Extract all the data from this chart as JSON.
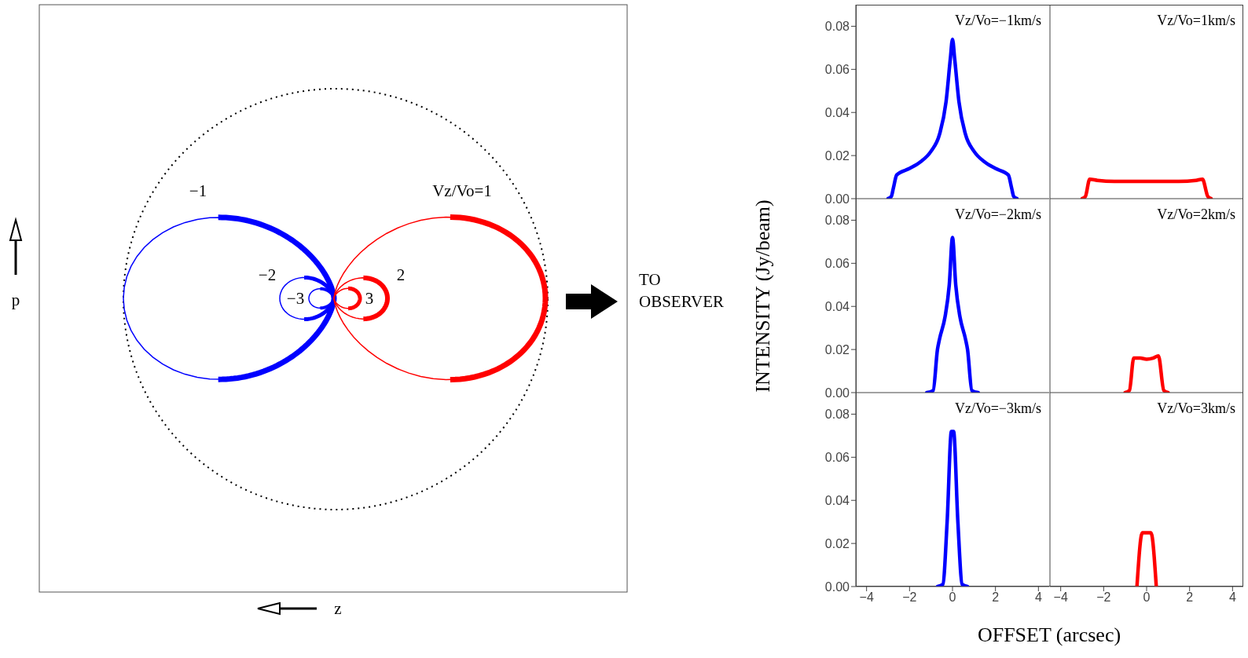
{
  "chart_data": [
    {
      "type": "other",
      "annotations": [
        "−1",
        "Vz/Vo=1",
        "−2",
        "2",
        "−3",
        "3",
        "TO OBSERVER",
        "p",
        "z"
      ]
    },
    {
      "type": "line",
      "annotations": [
        "Vz/Vo=−1km/s"
      ],
      "xlim": [
        -4.5,
        4.5
      ],
      "ylim": [
        0,
        0.09
      ],
      "xticks": [
        -4,
        -2,
        0,
        2,
        4
      ],
      "yticks": [
        {
          "value": 0,
          "label": "0.00"
        },
        {
          "value": 0.02,
          "label": "0.02"
        },
        {
          "value": 0.04,
          "label": "0.04"
        },
        {
          "value": 0.06,
          "label": "0.06"
        },
        {
          "value": 0.08,
          "label": "0.08"
        }
      ],
      "tick_labels": "y",
      "series": [
        {
          "color": "#0000ff",
          "x": [
            -3.0,
            -2.85,
            -2.75,
            -2.6,
            -2.0,
            -1.5,
            -1.0,
            -0.6,
            -0.3,
            -0.1,
            0,
            0.1,
            0.3,
            0.6,
            1.0,
            1.5,
            2.0,
            2.6,
            2.75,
            2.85,
            3.0
          ],
          "values": [
            0,
            0.001,
            0.005,
            0.011,
            0.014,
            0.017,
            0.022,
            0.03,
            0.045,
            0.065,
            0.074,
            0.065,
            0.045,
            0.03,
            0.022,
            0.017,
            0.014,
            0.011,
            0.005,
            0.001,
            0
          ]
        }
      ]
    },
    {
      "type": "line",
      "annotations": [
        "Vz/Vo=1km/s"
      ],
      "xlim": [
        -4.5,
        4.5
      ],
      "ylim": [
        0,
        0.09
      ],
      "xticks": [
        -4,
        -2,
        0,
        2,
        4
      ],
      "yticks": [
        {
          "value": 0,
          "label": null
        },
        {
          "value": 0.02,
          "label": null
        },
        {
          "value": 0.04,
          "label": null
        },
        {
          "value": 0.06,
          "label": null
        },
        {
          "value": 0.08,
          "label": null
        }
      ],
      "tick_labels": false,
      "series": [
        {
          "color": "#ff0000",
          "x": [
            -3.0,
            -2.85,
            -2.65,
            -2.3,
            -1.5,
            0,
            1.5,
            2.3,
            2.6,
            2.85,
            3.0
          ],
          "values": [
            0,
            0.001,
            0.009,
            0.0085,
            0.008,
            0.008,
            0.008,
            0.0085,
            0.009,
            0.001,
            0
          ]
        }
      ]
    },
    {
      "type": "line",
      "ylabel": "INTENSITY (Jy/beam)",
      "annotations": [
        "Vz/Vo=−2km/s"
      ],
      "xlim": [
        -4.5,
        4.5
      ],
      "ylim": [
        0,
        0.09
      ],
      "xticks": [
        -4,
        -2,
        0,
        2,
        4
      ],
      "yticks": [
        {
          "value": 0,
          "label": "0.00"
        },
        {
          "value": 0.02,
          "label": "0.02"
        },
        {
          "value": 0.04,
          "label": "0.04"
        },
        {
          "value": 0.06,
          "label": "0.06"
        },
        {
          "value": 0.08,
          "label": "0.08"
        }
      ],
      "tick_labels": "y",
      "series": [
        {
          "color": "#0000ff",
          "x": [
            -1.2,
            -0.9,
            -0.7,
            -0.6,
            -0.35,
            -0.15,
            0,
            0.15,
            0.35,
            0.6,
            0.7,
            0.9,
            1.2
          ],
          "values": [
            0,
            0.001,
            0.02,
            0.025,
            0.035,
            0.05,
            0.072,
            0.05,
            0.035,
            0.025,
            0.02,
            0.001,
            0
          ]
        }
      ]
    },
    {
      "type": "line",
      "annotations": [
        "Vz/Vo=2km/s"
      ],
      "xlim": [
        -4.5,
        4.5
      ],
      "ylim": [
        0,
        0.09
      ],
      "xticks": [
        -4,
        -2,
        0,
        2,
        4
      ],
      "yticks": [
        {
          "value": 0,
          "label": null
        },
        {
          "value": 0.02,
          "label": null
        },
        {
          "value": 0.04,
          "label": null
        },
        {
          "value": 0.06,
          "label": null
        },
        {
          "value": 0.08,
          "label": null
        }
      ],
      "tick_labels": false,
      "series": [
        {
          "color": "#ff0000",
          "x": [
            -1.0,
            -0.8,
            -0.6,
            -0.3,
            0,
            0.3,
            0.55,
            0.8,
            1.0
          ],
          "values": [
            0,
            0.001,
            0.016,
            0.016,
            0.0155,
            0.016,
            0.017,
            0.001,
            0
          ]
        }
      ]
    },
    {
      "type": "line",
      "xlabel": "OFFSET (arcsec)",
      "annotations": [
        "Vz/Vo=−3km/s"
      ],
      "xlim": [
        -4.5,
        4.5
      ],
      "ylim": [
        0,
        0.09
      ],
      "xticks": [
        -4,
        -2,
        0,
        2,
        4
      ],
      "yticks": [
        {
          "value": 0,
          "label": "0.00"
        },
        {
          "value": 0.02,
          "label": "0.02"
        },
        {
          "value": 0.04,
          "label": "0.04"
        },
        {
          "value": 0.06,
          "label": "0.06"
        },
        {
          "value": 0.08,
          "label": "0.08"
        }
      ],
      "series": [
        {
          "color": "#0000ff",
          "x": [
            -0.7,
            -0.45,
            -0.25,
            -0.05,
            0.05,
            0.25,
            0.45,
            0.7
          ],
          "values": [
            0,
            0.001,
            0.03,
            0.072,
            0.072,
            0.03,
            0.001,
            0
          ]
        }
      ]
    },
    {
      "type": "line",
      "annotations": [
        "Vz/Vo=3km/s"
      ],
      "xlim": [
        -4.5,
        4.5
      ],
      "ylim": [
        0,
        0.09
      ],
      "xticks": [
        -4,
        -2,
        0,
        2,
        4
      ],
      "yticks": [
        {
          "value": 0,
          "label": null
        },
        {
          "value": 0.02,
          "label": null
        },
        {
          "value": 0.04,
          "label": null
        },
        {
          "value": 0.06,
          "label": null
        },
        {
          "value": 0.08,
          "label": null
        }
      ],
      "tick_labels": "x",
      "series": [
        {
          "color": "#ff0000",
          "x": [
            -0.45,
            -0.2,
            -0.1,
            0.1,
            0.2,
            0.45
          ],
          "values": [
            0,
            0.025,
            0.025,
            0.025,
            0.025,
            0
          ]
        }
      ]
    }
  ]
}
